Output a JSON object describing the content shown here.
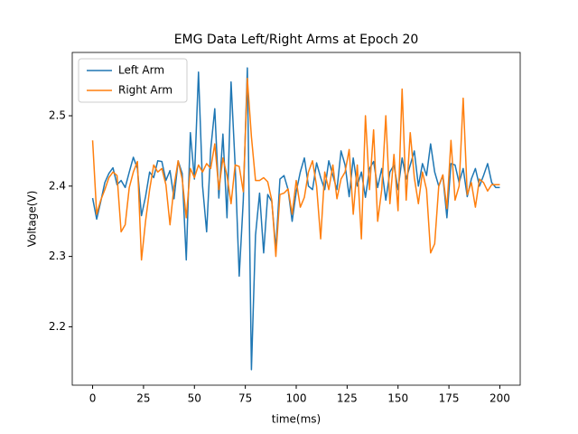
{
  "chart_data": {
    "type": "line",
    "title": "EMG Data Left/Right Arms at Epoch 20",
    "xlabel": "time(ms)",
    "ylabel": "Voltage(V)",
    "x": [
      0,
      2,
      4,
      6,
      8,
      10,
      12,
      14,
      16,
      18,
      20,
      22,
      24,
      26,
      28,
      30,
      32,
      34,
      36,
      38,
      40,
      42,
      44,
      46,
      48,
      50,
      52,
      54,
      56,
      58,
      60,
      62,
      64,
      66,
      68,
      70,
      72,
      74,
      76,
      78,
      80,
      82,
      84,
      86,
      88,
      90,
      92,
      94,
      96,
      98,
      100,
      102,
      104,
      106,
      108,
      110,
      112,
      114,
      116,
      118,
      120,
      122,
      124,
      126,
      128,
      130,
      132,
      134,
      136,
      138,
      140,
      142,
      144,
      146,
      148,
      150,
      152,
      154,
      156,
      158,
      160,
      162,
      164,
      166,
      168,
      170,
      172,
      174,
      176,
      178,
      180,
      182,
      184,
      186,
      188,
      190,
      192,
      194,
      196,
      198,
      200
    ],
    "series": [
      {
        "name": "Left Arm",
        "color": "#1f77b4",
        "values": [
          2.383,
          2.353,
          2.378,
          2.405,
          2.418,
          2.426,
          2.402,
          2.408,
          2.398,
          2.42,
          2.441,
          2.425,
          2.358,
          2.385,
          2.42,
          2.412,
          2.436,
          2.435,
          2.408,
          2.422,
          2.382,
          2.436,
          2.418,
          2.295,
          2.476,
          2.41,
          2.562,
          2.4,
          2.335,
          2.452,
          2.51,
          2.383,
          2.474,
          2.355,
          2.548,
          2.43,
          2.272,
          2.38,
          2.568,
          2.139,
          2.33,
          2.39,
          2.305,
          2.388,
          2.378,
          2.31,
          2.41,
          2.415,
          2.395,
          2.35,
          2.392,
          2.42,
          2.44,
          2.4,
          2.395,
          2.433,
          2.412,
          2.395,
          2.436,
          2.415,
          2.395,
          2.45,
          2.43,
          2.385,
          2.44,
          2.4,
          2.42,
          2.384,
          2.425,
          2.435,
          2.398,
          2.425,
          2.38,
          2.42,
          2.43,
          2.395,
          2.44,
          2.41,
          2.43,
          2.45,
          2.4,
          2.432,
          2.415,
          2.46,
          2.42,
          2.4,
          2.415,
          2.355,
          2.432,
          2.43,
          2.405,
          2.425,
          2.385,
          2.41,
          2.425,
          2.4,
          2.415,
          2.432,
          2.405,
          2.398,
          2.398
        ]
      },
      {
        "name": "Right Arm",
        "color": "#ff7f0e",
        "values": [
          2.465,
          2.36,
          2.38,
          2.395,
          2.412,
          2.42,
          2.415,
          2.335,
          2.345,
          2.398,
          2.42,
          2.435,
          2.295,
          2.35,
          2.395,
          2.43,
          2.42,
          2.425,
          2.402,
          2.345,
          2.4,
          2.436,
          2.41,
          2.355,
          2.425,
          2.412,
          2.43,
          2.42,
          2.432,
          2.425,
          2.46,
          2.395,
          2.44,
          2.415,
          2.375,
          2.43,
          2.428,
          2.392,
          2.553,
          2.47,
          2.408,
          2.408,
          2.412,
          2.406,
          2.38,
          2.3,
          2.388,
          2.39,
          2.396,
          2.36,
          2.408,
          2.37,
          2.384,
          2.42,
          2.436,
          2.4,
          2.325,
          2.42,
          2.395,
          2.43,
          2.382,
          2.41,
          2.42,
          2.452,
          2.36,
          2.43,
          2.325,
          2.5,
          2.395,
          2.48,
          2.35,
          2.395,
          2.5,
          2.375,
          2.445,
          2.365,
          2.538,
          2.38,
          2.476,
          2.412,
          2.375,
          2.42,
          2.395,
          2.305,
          2.318,
          2.4,
          2.416,
          2.368,
          2.465,
          2.38,
          2.4,
          2.525,
          2.388,
          2.405,
          2.37,
          2.41,
          2.405,
          2.393,
          2.402,
          2.402,
          2.402
        ]
      }
    ],
    "xlim": [
      -10,
      210
    ],
    "xticks": [
      0,
      25,
      50,
      75,
      100,
      125,
      150,
      175,
      200
    ],
    "ylim": [
      2.117,
      2.59
    ],
    "yticks": [
      2.2,
      2.3,
      2.4,
      2.5
    ],
    "grid": false,
    "legend": "upper left"
  }
}
